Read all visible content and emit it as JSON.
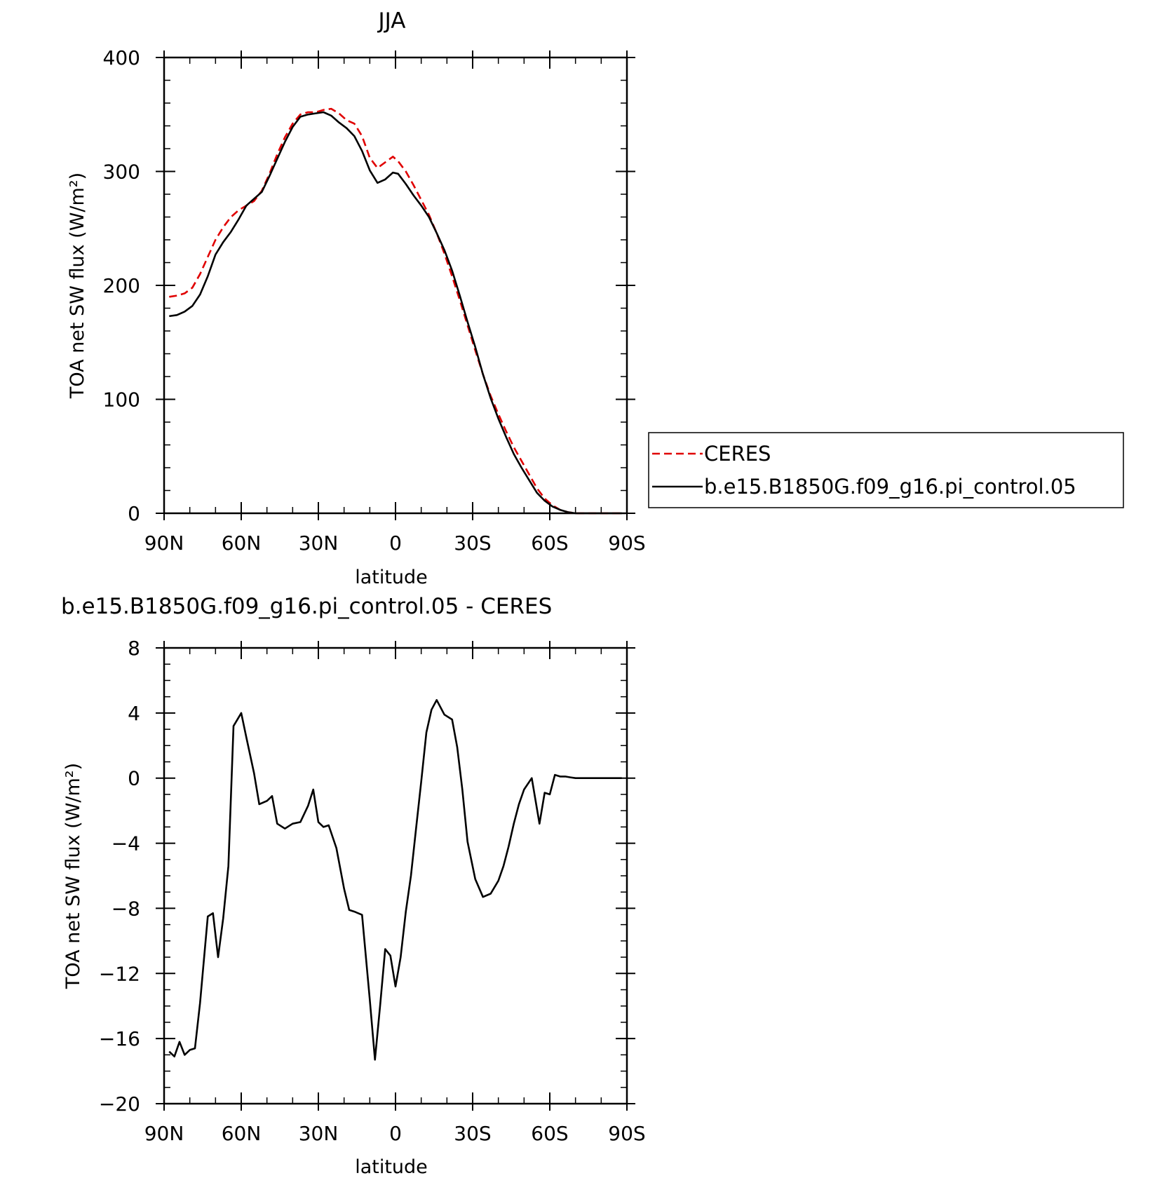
{
  "chart_data": [
    {
      "type": "line",
      "title": "JJA",
      "xlabel": "latitude",
      "ylabel": "TOA net SW flux (W/m²)",
      "xlim": [
        90,
        -90
      ],
      "ylim": [
        0,
        400
      ],
      "x_ticks": [
        {
          "v": 90,
          "label": "90N"
        },
        {
          "v": 60,
          "label": "60N"
        },
        {
          "v": 30,
          "label": "30N"
        },
        {
          "v": 0,
          "label": "0"
        },
        {
          "v": -30,
          "label": "30S"
        },
        {
          "v": -60,
          "label": "60S"
        },
        {
          "v": -90,
          "label": "90S"
        }
      ],
      "y_ticks": [
        {
          "v": 0,
          "label": "0"
        },
        {
          "v": 100,
          "label": "100"
        },
        {
          "v": 200,
          "label": "200"
        },
        {
          "v": 300,
          "label": "300"
        },
        {
          "v": 400,
          "label": "400"
        }
      ],
      "legend": "right, outside",
      "series": [
        {
          "name": "CERES",
          "color": "#e00000",
          "dash": "dashed",
          "x": [
            88,
            85,
            82,
            79,
            76,
            73,
            70,
            67,
            64,
            61,
            58,
            55,
            52,
            49,
            46,
            43,
            40,
            37,
            34,
            31,
            28,
            25,
            22,
            19,
            16,
            13,
            10,
            7,
            4,
            1,
            -1,
            -4,
            -7,
            -10,
            -13,
            -16,
            -19,
            -22,
            -25,
            -28,
            -31,
            -34,
            -37,
            -40,
            -43,
            -46,
            -49,
            -52,
            -55,
            -58,
            -61,
            -64,
            -67,
            -70,
            -73,
            -76,
            -79,
            -82,
            -85,
            -88
          ],
          "values": [
            190,
            191,
            193,
            198,
            210,
            225,
            240,
            251,
            260,
            266,
            270,
            274,
            283,
            298,
            315,
            330,
            342,
            350,
            352,
            352,
            354,
            355,
            351,
            345,
            342,
            331,
            312,
            303,
            308,
            313,
            309,
            300,
            288,
            275,
            262,
            246,
            228,
            208,
            187,
            165,
            143,
            122,
            103,
            87,
            72,
            58,
            46,
            34,
            22,
            13,
            7,
            3,
            1,
            0,
            0,
            0,
            0,
            0,
            0,
            0
          ]
        },
        {
          "name": "b.e15.B1850G.f09_g16.pi_control.05",
          "color": "#000000",
          "dash": "solid",
          "x": [
            88,
            85,
            82,
            79,
            76,
            73,
            70,
            67,
            64,
            61,
            58,
            55,
            52,
            49,
            46,
            43,
            40,
            37,
            34,
            31,
            28,
            25,
            22,
            19,
            16,
            13,
            10,
            7,
            4,
            1,
            -1,
            -4,
            -7,
            -10,
            -13,
            -16,
            -19,
            -22,
            -25,
            -28,
            -31,
            -34,
            -37,
            -40,
            -43,
            -46,
            -49,
            -52,
            -55,
            -58,
            -61,
            -64,
            -67,
            -70,
            -73,
            -76,
            -79,
            -82,
            -85,
            -88
          ],
          "values": [
            173,
            174,
            177,
            182,
            192,
            208,
            227,
            238,
            247,
            258,
            270,
            276,
            282,
            296,
            311,
            326,
            339,
            348,
            350,
            351,
            352,
            349,
            343,
            338,
            331,
            318,
            301,
            290,
            293,
            299,
            298,
            289,
            279,
            270,
            260,
            246,
            231,
            213,
            191,
            168,
            146,
            122,
            101,
            83,
            67,
            52,
            40,
            29,
            18,
            11,
            6,
            3,
            1,
            0,
            0,
            0,
            0,
            0,
            0,
            0
          ]
        }
      ]
    },
    {
      "type": "line",
      "title": "b.e15.B1850G.f09_g16.pi_control.05 - CERES",
      "xlabel": "latitude",
      "ylabel": "TOA net SW flux (W/m²)",
      "xlim": [
        90,
        -90
      ],
      "ylim": [
        -20,
        8
      ],
      "x_ticks": [
        {
          "v": 90,
          "label": "90N"
        },
        {
          "v": 60,
          "label": "60N"
        },
        {
          "v": 30,
          "label": "30N"
        },
        {
          "v": 0,
          "label": "0"
        },
        {
          "v": -30,
          "label": "30S"
        },
        {
          "v": -60,
          "label": "60S"
        },
        {
          "v": -90,
          "label": "90S"
        }
      ],
      "y_ticks": [
        {
          "v": -20,
          "label": "−20"
        },
        {
          "v": -16,
          "label": "−16"
        },
        {
          "v": -12,
          "label": "−12"
        },
        {
          "v": -8,
          "label": "−8"
        },
        {
          "v": -4,
          "label": "−4"
        },
        {
          "v": 0,
          "label": "0"
        },
        {
          "v": 4,
          "label": "4"
        },
        {
          "v": 8,
          "label": "8"
        }
      ],
      "series": [
        {
          "color": "#000000",
          "dash": "solid",
          "x": [
            88,
            86,
            84,
            82,
            80,
            78,
            76,
            73,
            71,
            69,
            67,
            65,
            63,
            60,
            58,
            55,
            53,
            50,
            48,
            46,
            43,
            40,
            37,
            34,
            32,
            30,
            28,
            26,
            23,
            20,
            18,
            16,
            13,
            10,
            8,
            6,
            4,
            2,
            0,
            -2,
            -4,
            -6,
            -8,
            -10,
            -12,
            -14,
            -16,
            -19,
            -22,
            -24,
            -26,
            -28,
            -31,
            -34,
            -37,
            -40,
            -42,
            -44,
            -46,
            -48,
            -50,
            -53,
            -56,
            -58,
            -60,
            -62,
            -64,
            -66,
            -68,
            -70,
            -72,
            -75,
            -78,
            -81,
            -84,
            -88
          ],
          "values": [
            -16.8,
            -17.1,
            -16.2,
            -17.0,
            -16.7,
            -16.6,
            -13.8,
            -8.5,
            -8.3,
            -11.0,
            -8.6,
            -5.4,
            3.2,
            4.0,
            2.5,
            0.3,
            -1.6,
            -1.4,
            -1.1,
            -2.8,
            -3.1,
            -2.8,
            -2.7,
            -1.7,
            -0.7,
            -2.7,
            -3.0,
            -2.9,
            -4.3,
            -6.8,
            -8.1,
            -8.2,
            -8.4,
            -13.6,
            -17.3,
            -14.0,
            -10.5,
            -10.9,
            -12.8,
            -11.0,
            -8.2,
            -6.0,
            -3.1,
            -0.2,
            2.8,
            4.2,
            4.8,
            3.9,
            3.6,
            1.9,
            -0.7,
            -3.9,
            -6.2,
            -7.3,
            -7.1,
            -6.3,
            -5.4,
            -4.2,
            -2.8,
            -1.6,
            -0.7,
            0.0,
            -2.8,
            -0.9,
            -1.0,
            0.2,
            0.1,
            0.1,
            0.05,
            0.0,
            0.0,
            0.0,
            0.0,
            0.0,
            0.0,
            0.0
          ]
        }
      ]
    }
  ]
}
